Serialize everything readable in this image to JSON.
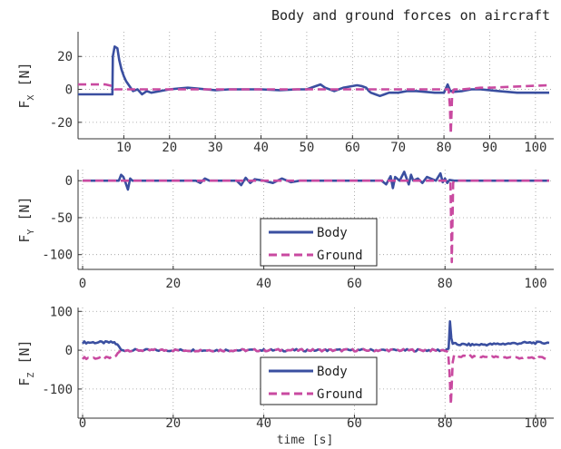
{
  "chart_data": [
    {
      "type": "line",
      "title": "Body and ground forces on aircraft",
      "ylabel_main": "F",
      "ylabel_sub": "X",
      "ylabel_unit": "[N]",
      "xlabel": "",
      "xlim": [
        0,
        104
      ],
      "ylim": [
        -30,
        35
      ],
      "xticks": [
        10,
        20,
        30,
        40,
        50,
        60,
        70,
        80,
        90,
        100
      ],
      "yticks": [
        -20,
        0,
        20
      ],
      "grid": true,
      "legend": null,
      "series": [
        {
          "name": "Body",
          "color": "#3a4fa0",
          "dash": "solid",
          "x": [
            0,
            7.5,
            7.6,
            8,
            8.6,
            9,
            9.5,
            10,
            10.5,
            11,
            11.5,
            12,
            13,
            14,
            15,
            16,
            18,
            20,
            22,
            24,
            26,
            28,
            30,
            33,
            36,
            40,
            44,
            48,
            50,
            52,
            53,
            54,
            56,
            58,
            60,
            61,
            62,
            63,
            63.6,
            64,
            65,
            66,
            67,
            68,
            70,
            72,
            74,
            76,
            78,
            80,
            80.8,
            81.1,
            81.4,
            81.7,
            82,
            84,
            86,
            88,
            90,
            92,
            94,
            96,
            100,
            103
          ],
          "y": [
            -3,
            -3,
            20,
            26,
            25,
            18,
            12,
            8,
            5,
            3,
            1,
            -1,
            0,
            -3,
            -1,
            -2,
            -1,
            0,
            0.5,
            1,
            0.5,
            0,
            -0.5,
            0,
            0,
            0,
            -0.5,
            0,
            0,
            2,
            3,
            1,
            -1,
            1,
            2,
            2.5,
            2,
            1,
            -1,
            -2,
            -3,
            -4,
            -3,
            -2,
            -2,
            -1,
            -1,
            -1.5,
            -2,
            -2,
            3,
            1,
            -1,
            -1,
            -1.5,
            -1,
            0,
            0,
            -0.5,
            -1,
            -1.5,
            -2,
            -2,
            -2
          ]
        },
        {
          "name": "Ground",
          "color": "#c94aa0",
          "dash": "dashed",
          "x": [
            0,
            6,
            7.5,
            8,
            10,
            14,
            20,
            30,
            40,
            50,
            60,
            70,
            78,
            80,
            81,
            81.3,
            81.5,
            81.8,
            82.2,
            84,
            86,
            88,
            90,
            94,
            98,
            103
          ],
          "y": [
            3,
            3,
            2,
            0,
            0,
            0,
            0,
            0,
            0,
            0,
            0,
            0,
            0,
            0,
            0,
            -10,
            -27,
            -3,
            0,
            0,
            0.5,
            1,
            1,
            1.5,
            2,
            2.5
          ]
        }
      ]
    },
    {
      "type": "line",
      "title": "",
      "ylabel_main": "F",
      "ylabel_sub": "Y",
      "ylabel_unit": "[N]",
      "xlabel": "",
      "xlim": [
        -1,
        104
      ],
      "ylim": [
        -120,
        15
      ],
      "xticks": [
        0,
        20,
        40,
        60,
        80,
        100
      ],
      "yticks": [
        -100,
        -50,
        0
      ],
      "grid": true,
      "legend": {
        "position": "lower-center",
        "entries": [
          "Body",
          "Ground"
        ]
      },
      "series": [
        {
          "name": "Body",
          "color": "#3a4fa0",
          "dash": "solid",
          "x": [
            0,
            6,
            8,
            8.5,
            9,
            9.5,
            10,
            10.5,
            11,
            12,
            14,
            18,
            22,
            25,
            26,
            27,
            28,
            30,
            34,
            35,
            36,
            37,
            38,
            40,
            42,
            44,
            46,
            48,
            50,
            54,
            58,
            62,
            66,
            67,
            68,
            68.5,
            69,
            70,
            71,
            72,
            72.5,
            73,
            74,
            75,
            76,
            78,
            79,
            79.5,
            80,
            80.5,
            81,
            82,
            84,
            90,
            95,
            103
          ],
          "y": [
            0,
            0,
            0,
            8,
            5,
            -3,
            -12,
            3,
            0,
            0,
            0,
            0,
            0,
            0,
            -3,
            3,
            0,
            0,
            0,
            -6,
            4,
            -3,
            2,
            0,
            -3,
            3,
            -2,
            0,
            0,
            0,
            0,
            0,
            0,
            -5,
            6,
            -10,
            5,
            0,
            12,
            -5,
            8,
            0,
            3,
            -3,
            5,
            0,
            10,
            -2,
            3,
            -3,
            1,
            0,
            0,
            0,
            0,
            0
          ]
        },
        {
          "name": "Ground",
          "color": "#c94aa0",
          "dash": "dashed",
          "x": [
            0,
            10,
            20,
            30,
            40,
            50,
            60,
            70,
            80,
            80.8,
            81.2,
            81.5,
            81.8,
            82,
            82.3,
            84,
            90,
            100,
            103
          ],
          "y": [
            0,
            0,
            0,
            0,
            0,
            0,
            0,
            0,
            0,
            0,
            -2,
            -110,
            -3,
            0,
            0,
            0,
            0,
            0,
            0
          ]
        }
      ]
    },
    {
      "type": "line",
      "title": "",
      "ylabel_main": "F",
      "ylabel_sub": "Z",
      "ylabel_unit": "[N]",
      "xlabel": "time [s]",
      "xlim": [
        -1,
        104
      ],
      "ylim": [
        -175,
        110
      ],
      "xticks": [
        0,
        20,
        40,
        60,
        80,
        100
      ],
      "yticks": [
        -100,
        0,
        100
      ],
      "grid": true,
      "legend": {
        "position": "lower-center",
        "entries": [
          "Body",
          "Ground"
        ]
      },
      "series": [
        {
          "name": "Body",
          "color": "#3a4fa0",
          "dash": "solid",
          "x": [
            0,
            7,
            8,
            8.5,
            9,
            10,
            12,
            16,
            20,
            30,
            40,
            50,
            60,
            70,
            78,
            80,
            80.8,
            81.1,
            81.4,
            81.7,
            82,
            83,
            86,
            90,
            94,
            98,
            103
          ],
          "y": [
            20,
            20,
            10,
            0,
            0,
            0,
            0,
            0,
            0,
            0,
            0,
            0,
            0,
            0,
            0,
            0,
            5,
            72,
            30,
            18,
            16,
            15,
            14,
            15,
            17,
            19,
            19
          ],
          "noise": 3
        },
        {
          "name": "Ground",
          "color": "#c94aa0",
          "dash": "dashed",
          "x": [
            0,
            6,
            7,
            8.5,
            10,
            20,
            30,
            40,
            50,
            60,
            70,
            78,
            80,
            80.7,
            81,
            81.3,
            81.7,
            82,
            84,
            88,
            92,
            96,
            100,
            103
          ],
          "y": [
            -20,
            -20,
            -18,
            0,
            0,
            0,
            0,
            0,
            0,
            0,
            0,
            0,
            0,
            -5,
            -60,
            -140,
            -30,
            -15,
            -16,
            -17,
            -18,
            -19,
            -20,
            -20
          ],
          "noise": 3
        }
      ]
    }
  ]
}
